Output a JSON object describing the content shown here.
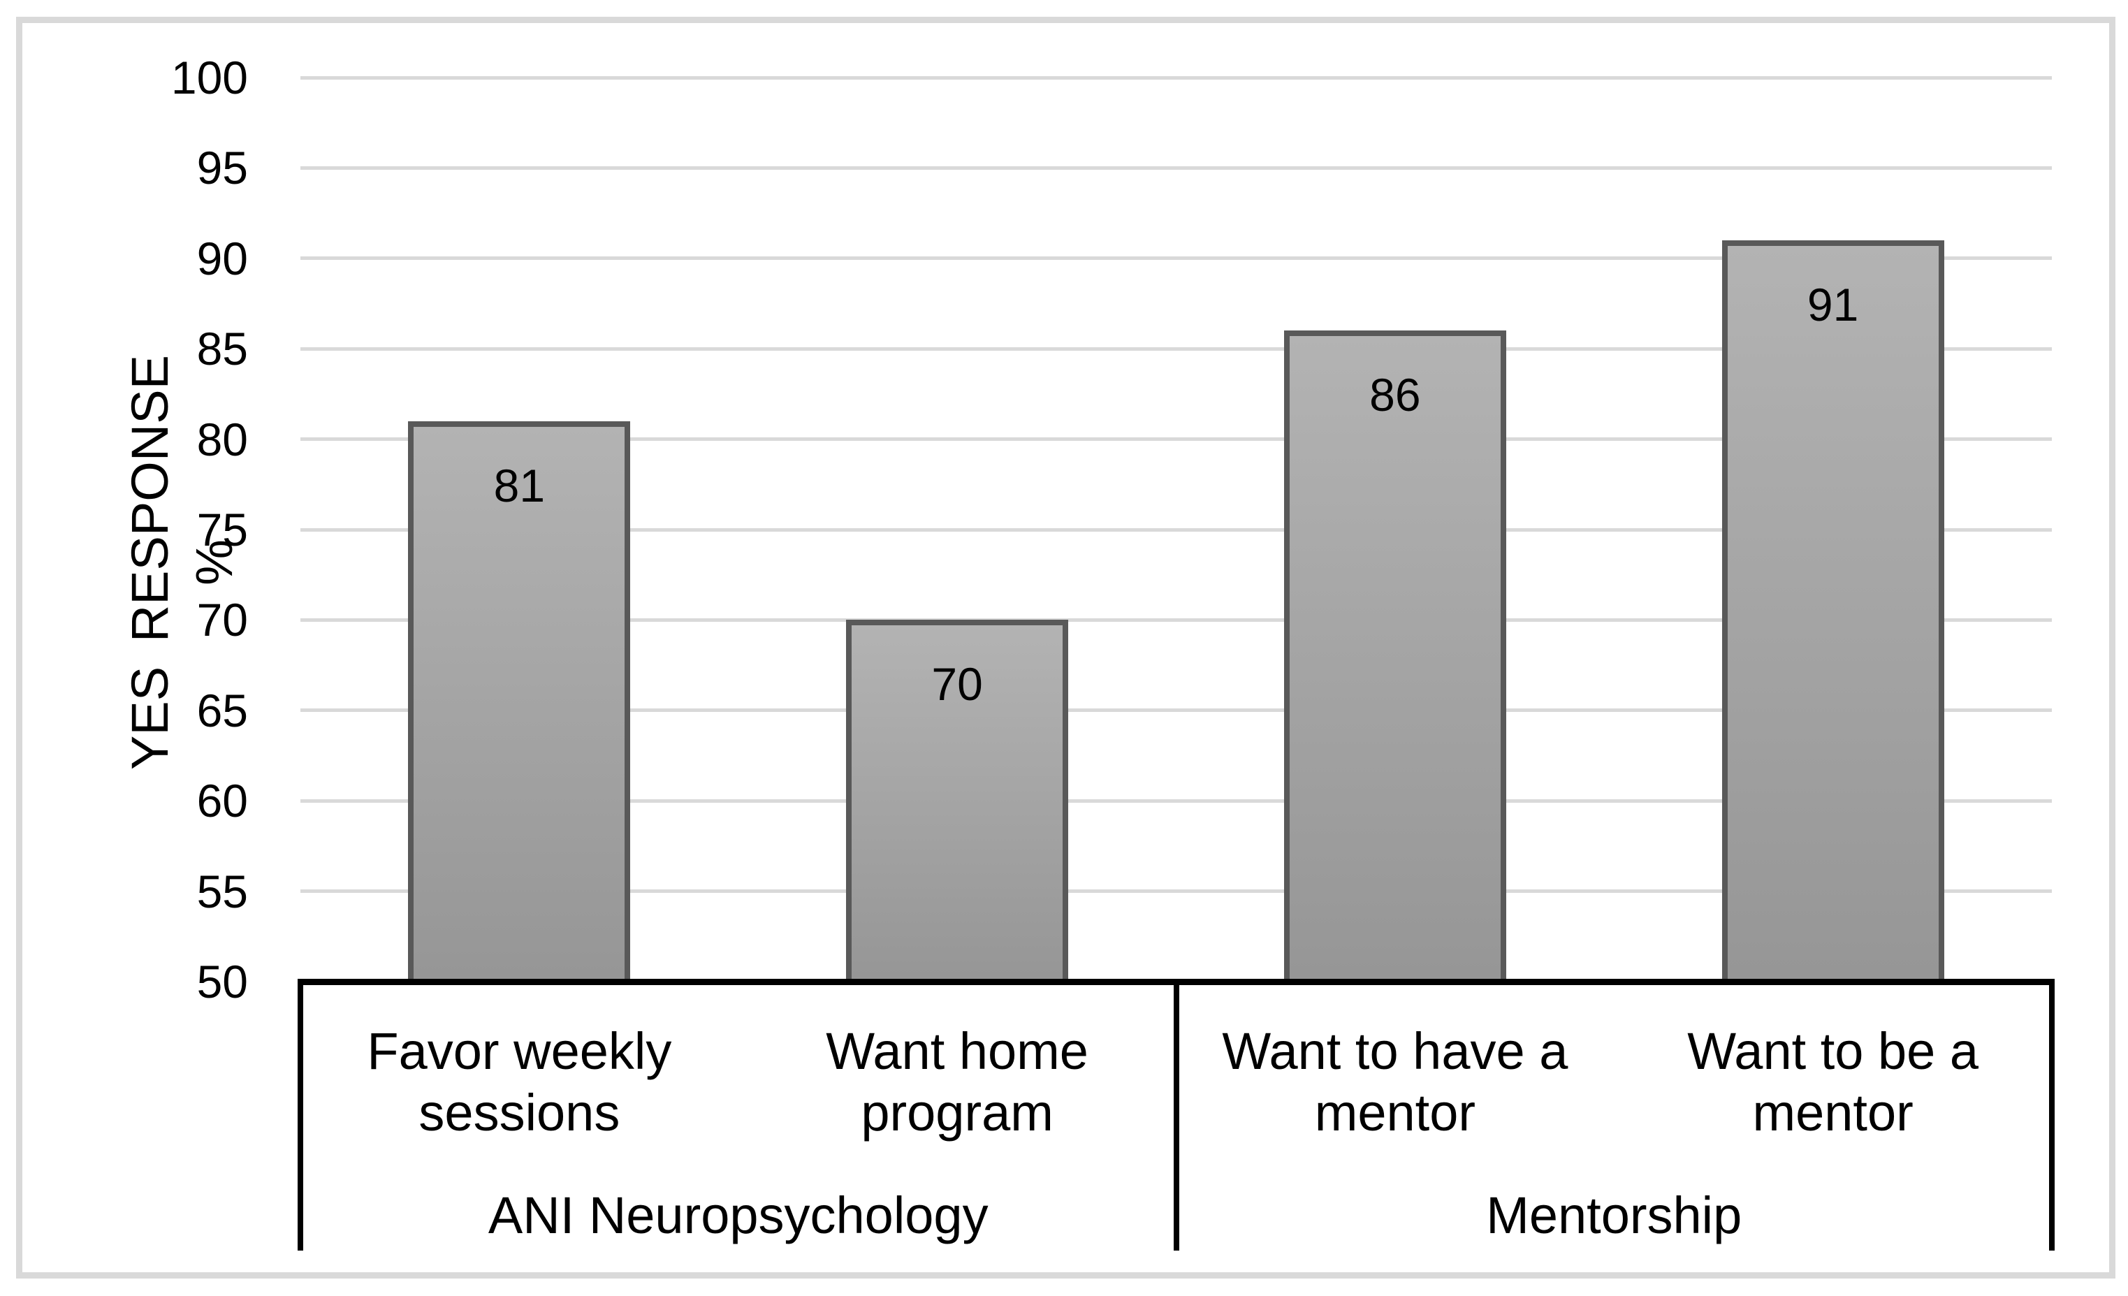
{
  "figure": {
    "background": "#ffffff",
    "frame_border_color": "#d9d9d9"
  },
  "chart_data": {
    "type": "bar",
    "title": "",
    "xlabel": "",
    "ylabel": "YES RESPONSE %",
    "ylim": [
      50,
      100
    ],
    "ytick_step": 5,
    "yticks": [
      100,
      95,
      90,
      85,
      80,
      75,
      70,
      65,
      60,
      55,
      50
    ],
    "grid": true,
    "legend": false,
    "categories": [
      "Favor weekly\nsessions",
      "Want home\nprogram",
      "Want to have a\nmentor",
      "Want to be a\nmentor"
    ],
    "values": [
      81,
      70,
      86,
      91
    ],
    "data_label_position": "inside-end",
    "groups": [
      {
        "label": "ANI Neuropsychology",
        "span": 2
      },
      {
        "label": "Mentorship",
        "span": 2
      }
    ],
    "colors": {
      "bar_fill_top": "#b3b3b3",
      "bar_fill_bottom": "#969696",
      "bar_border": "#595959",
      "gridline": "#d9d9d9",
      "axis": "#000000",
      "text": "#000000"
    }
  }
}
